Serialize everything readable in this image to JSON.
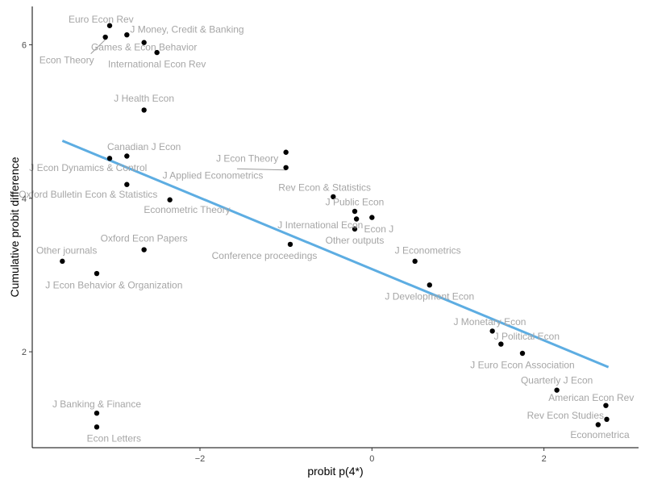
{
  "chart_data": {
    "type": "scatter",
    "xlabel": "probit p(4*)",
    "ylabel": "Cumulative probit difference",
    "xlim": [
      -3.95,
      3.1
    ],
    "ylim": [
      0.75,
      6.5
    ],
    "xticks": [
      -2,
      0,
      2
    ],
    "yticks": [
      2,
      4,
      6
    ],
    "grid": false,
    "fit_color": "#5DADE2",
    "fit_line": {
      "x0": -3.6,
      "y0": 4.75,
      "x1": 2.75,
      "y1": 1.8
    },
    "points": [
      {
        "x": -3.05,
        "y": 6.25,
        "label": "Euro Econ Rev",
        "lx": -3.15,
        "ly": 6.33
      },
      {
        "x": -2.85,
        "y": 6.13,
        "label": "J Money, Credit & Banking",
        "lx": -2.15,
        "ly": 6.2
      },
      {
        "x": -3.1,
        "y": 6.1,
        "label": "Econ Theory",
        "lx": -3.55,
        "ly": 5.8,
        "leader": true
      },
      {
        "x": -2.65,
        "y": 6.03,
        "label": "Games & Econ Behavior",
        "lx": -2.65,
        "ly": 5.97
      },
      {
        "x": -2.5,
        "y": 5.9,
        "label": "International Econ Rev",
        "lx": -2.5,
        "ly": 5.75
      },
      {
        "x": -2.65,
        "y": 5.15,
        "label": "J Health Econ",
        "lx": -2.65,
        "ly": 5.3
      },
      {
        "x": -2.85,
        "y": 4.55,
        "label": "Canadian J Econ",
        "lx": -2.65,
        "ly": 4.67
      },
      {
        "x": -3.05,
        "y": 4.52,
        "label": "J Econ Dynamics & Control",
        "lx": -3.3,
        "ly": 4.4
      },
      {
        "x": -2.85,
        "y": 4.18,
        "label": "Oxford Bulletin Econ & Statistics",
        "lx": -3.3,
        "ly": 4.05
      },
      {
        "x": -2.35,
        "y": 3.98,
        "label": "Econometric Theory",
        "lx": -2.15,
        "ly": 3.85
      },
      {
        "x": -1.0,
        "y": 4.6,
        "label": "J Econ Theory",
        "lx": -1.45,
        "ly": 4.52
      },
      {
        "x": -1.0,
        "y": 4.4,
        "label": "J Applied Econometrics",
        "lx": -1.85,
        "ly": 4.3,
        "leader": true
      },
      {
        "x": -0.45,
        "y": 4.02,
        "label": "Rev Econ & Statistics",
        "lx": -0.55,
        "ly": 4.14
      },
      {
        "x": -0.2,
        "y": 3.83,
        "label": "J Public Econ",
        "lx": -0.2,
        "ly": 3.95
      },
      {
        "x": -0.18,
        "y": 3.73,
        "label": "J International Econ",
        "lx": -0.6,
        "ly": 3.65
      },
      {
        "x": 0.0,
        "y": 3.75,
        "label": "Econ J",
        "lx": 0.08,
        "ly": 3.6
      },
      {
        "x": -0.2,
        "y": 3.6,
        "label": "Other outputs",
        "lx": -0.2,
        "ly": 3.45
      },
      {
        "x": -0.95,
        "y": 3.4,
        "label": "Conference proceedings",
        "lx": -1.25,
        "ly": 3.25
      },
      {
        "x": -2.65,
        "y": 3.33,
        "label": "Oxford Econ Papers",
        "lx": -2.65,
        "ly": 3.48
      },
      {
        "x": -3.6,
        "y": 3.18,
        "label": "Other journals",
        "lx": -3.55,
        "ly": 3.32
      },
      {
        "x": -3.2,
        "y": 3.02,
        "label": "J Econ Behavior & Organization",
        "lx": -3.0,
        "ly": 2.87
      },
      {
        "x": 0.5,
        "y": 3.18,
        "label": "J Econometrics",
        "lx": 0.65,
        "ly": 3.32
      },
      {
        "x": 0.67,
        "y": 2.87,
        "label": "J Development Econ",
        "lx": 0.67,
        "ly": 2.72
      },
      {
        "x": 1.4,
        "y": 2.27,
        "label": "J Monetary Econ",
        "lx": 1.37,
        "ly": 2.39
      },
      {
        "x": 1.5,
        "y": 2.1,
        "label": "J Political Econ",
        "lx": 1.8,
        "ly": 2.2
      },
      {
        "x": 1.75,
        "y": 1.98,
        "label": "J Euro Econ Association",
        "lx": 1.75,
        "ly": 1.83
      },
      {
        "x": 2.15,
        "y": 1.5,
        "label": "Quarterly J Econ",
        "lx": 2.15,
        "ly": 1.63
      },
      {
        "x": 2.72,
        "y": 1.3,
        "label": "American Econ Rev",
        "lx": 2.55,
        "ly": 1.4
      },
      {
        "x": 2.73,
        "y": 1.12,
        "label": "Rev Econ Studies",
        "lx": 2.25,
        "ly": 1.17
      },
      {
        "x": 2.63,
        "y": 1.05,
        "label": "Econometrica",
        "lx": 2.65,
        "ly": 0.92
      },
      {
        "x": -3.2,
        "y": 1.2,
        "label": "J Banking & Finance",
        "lx": -3.2,
        "ly": 1.32
      },
      {
        "x": -3.2,
        "y": 1.02,
        "label": "Econ Letters",
        "lx": -3.0,
        "ly": 0.87
      }
    ]
  }
}
